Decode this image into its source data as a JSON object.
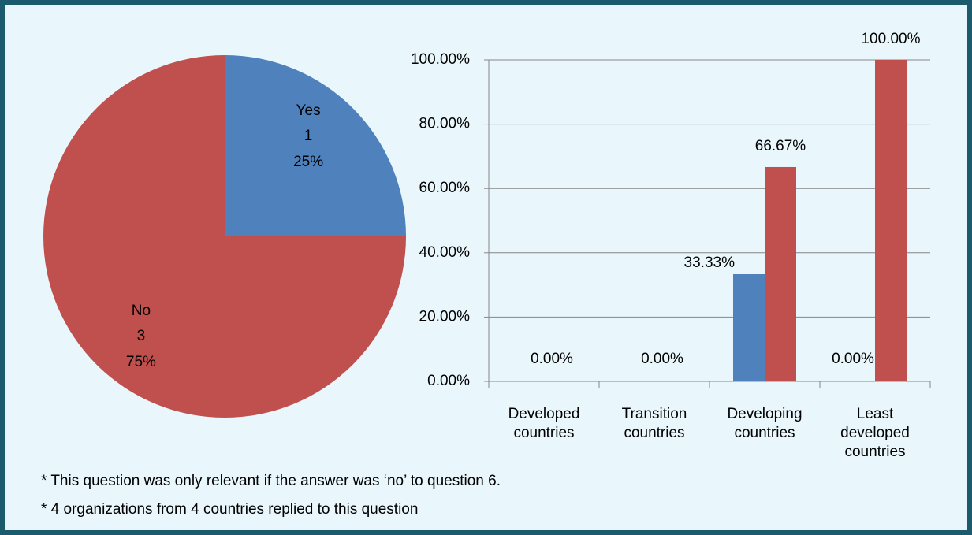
{
  "chart_data": [
    {
      "type": "pie",
      "categories": [
        "Yes",
        "No"
      ],
      "values": [
        25,
        75
      ],
      "value_labels": [
        "25%",
        "75%"
      ],
      "counts": [
        1,
        3
      ],
      "colors": [
        "#4f81bd",
        "#c0504d"
      ]
    },
    {
      "type": "bar",
      "categories": [
        "Developed countries",
        "Transition countries",
        "Developing countries",
        "Least developed countries"
      ],
      "series": [
        {
          "color": "#4f81bd",
          "values": [
            0,
            0,
            33.33,
            0
          ],
          "value_labels": [
            "0.00%",
            "0.00%",
            "33.33%",
            "0.00%"
          ]
        },
        {
          "color": "#c0504d",
          "values": [
            null,
            null,
            66.67,
            100
          ],
          "value_labels": [
            null,
            null,
            "66.67%",
            "100.00%"
          ]
        }
      ],
      "ylim": [
        0,
        100
      ],
      "yticks": [
        {
          "value": 0,
          "label": "0.00%"
        },
        {
          "value": 20,
          "label": "20.00%"
        },
        {
          "value": 40,
          "label": "40.00%"
        },
        {
          "value": 60,
          "label": "60.00%"
        },
        {
          "value": 80,
          "label": "80.00%"
        },
        {
          "value": 100,
          "label": "100.00%"
        }
      ],
      "grid": true
    }
  ],
  "footnotes": [
    "* This question was only relevant if the answer was ‘no’ to question 6.",
    "* 4 organizations from 4 countries replied to this question"
  ]
}
